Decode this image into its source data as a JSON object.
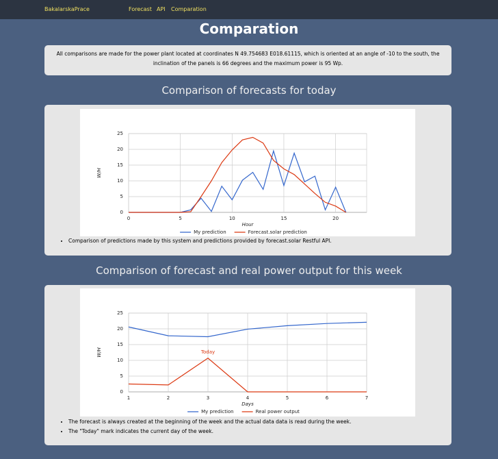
{
  "nav": {
    "brand": "BakalarskaPrace",
    "links": [
      "Forecast",
      "API",
      "Comparation"
    ]
  },
  "page": {
    "title": "Comparation",
    "info": "All comparisons are made for the power plant located at coordinates N 49.754683 E018.61115, which is oriented at an angle of -10 to the south, the inclination of the panels is 66 degrees and the maximum power is 95 Wp.",
    "sections": [
      {
        "heading": "Comparison of forecasts for today",
        "notes": [
          "Comparison of predictions made by this system and predictions provided by forecast.solar Restful API."
        ]
      },
      {
        "heading": "Comparison of forecast and real power output for this week",
        "notes": [
          "The forecast is always created at the beginning of the week and the actual data data is read during the week.",
          "The \"Today\" mark indicates the current day of the week."
        ]
      }
    ]
  },
  "chart_data": [
    {
      "type": "line",
      "x_label": "Hour",
      "y_label": "W/H",
      "x": [
        0,
        1,
        2,
        3,
        4,
        5,
        6,
        7,
        8,
        9,
        10,
        11,
        12,
        13,
        14,
        15,
        16,
        17,
        18,
        19,
        20,
        21
      ],
      "xlim": [
        0,
        23
      ],
      "xticks": [
        0,
        5,
        10,
        15,
        20
      ],
      "ylim": [
        0,
        25
      ],
      "yticks": [
        0,
        5,
        10,
        15,
        20,
        25
      ],
      "grid": true,
      "series": [
        {
          "name": "My prediction",
          "color": "#3366cc",
          "values": [
            0,
            0,
            0,
            0,
            0,
            0,
            0.8,
            4.5,
            0.3,
            8.3,
            4,
            10.2,
            12.7,
            7.3,
            19.5,
            8.5,
            18.8,
            9.7,
            11.5,
            0.8,
            8,
            0
          ]
        },
        {
          "name": "Forecast.solar prediction",
          "color": "#dc3912",
          "values": [
            0,
            0,
            0,
            0,
            0,
            0,
            0.2,
            5,
            10,
            15.8,
            19.8,
            23,
            23.8,
            22,
            16.5,
            13.8,
            12,
            9,
            6,
            3.2,
            2,
            0
          ]
        }
      ]
    },
    {
      "type": "line",
      "x_label": "Days",
      "y_label": "W/H",
      "x": [
        1,
        2,
        3,
        4,
        5,
        6,
        7
      ],
      "xlim": [
        1,
        7
      ],
      "xticks": [
        1,
        2,
        3,
        4,
        5,
        6,
        7
      ],
      "ylim": [
        0,
        25
      ],
      "yticks": [
        0,
        5,
        10,
        15,
        20,
        25
      ],
      "grid": true,
      "annotations": [
        {
          "text": "Today",
          "x": 3
        }
      ],
      "series": [
        {
          "name": "My prediction",
          "color": "#3366cc",
          "values": [
            20.6,
            17.8,
            17.5,
            19.9,
            21,
            21.7,
            22.1
          ]
        },
        {
          "name": "Real power output",
          "color": "#dc3912",
          "values": [
            2.5,
            2.2,
            10.7,
            0,
            0,
            0,
            0
          ]
        }
      ]
    }
  ]
}
